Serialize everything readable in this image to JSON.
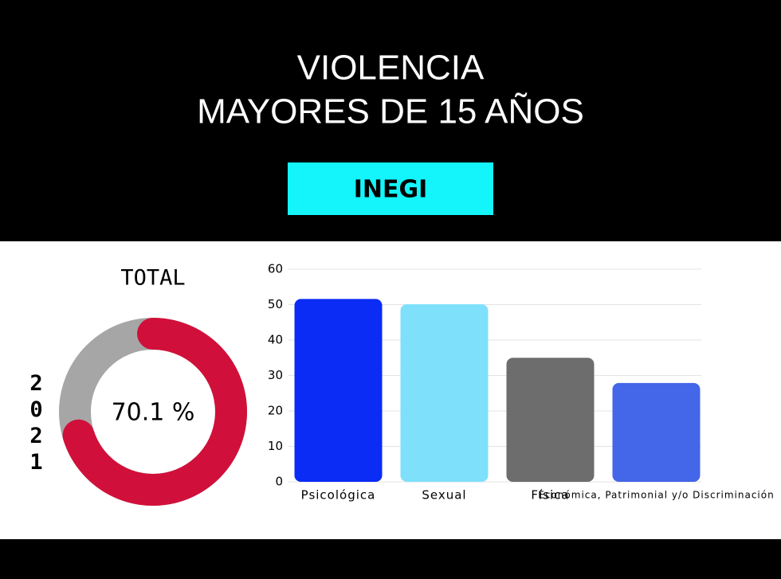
{
  "header": {
    "title": [
      "VIOLENCIA",
      "MAYORES DE 15 AÑOS"
    ],
    "source": "INEGI"
  },
  "chart_data": [
    {
      "type": "donut",
      "title": "TOTAL",
      "year": "2021",
      "values": [
        70.1
      ],
      "value_labels": [
        "70.1 %"
      ],
      "color": "#d0103a"
    },
    {
      "type": "bar",
      "categories": [
        "Psicológica",
        "Sexual",
        "Física",
        "Económica, Patrimonial y/o Discriminación"
      ],
      "values": [
        51.6,
        50.1,
        35.0,
        27.9
      ],
      "colors": [
        "#0a2cf5",
        "#7fe0fb",
        "#6d6d6d",
        "#4466e8"
      ],
      "ylim": [
        0,
        60
      ],
      "yticks": [
        0,
        10,
        20,
        30,
        40,
        50,
        60
      ],
      "grid": true
    }
  ]
}
